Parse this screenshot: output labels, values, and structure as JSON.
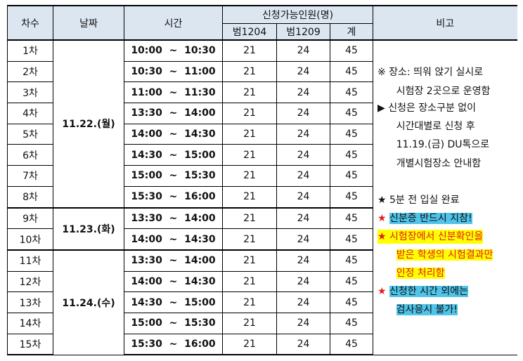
{
  "headers": {
    "round": "차수",
    "date": "날짜",
    "time": "시간",
    "capacity": "신청가능인원(명)",
    "room1": "범1204",
    "room2": "범1209",
    "total": "계",
    "remarks": "비고"
  },
  "rows": [
    {
      "round": "1차",
      "time": "10:00  ~  10:30",
      "r1": "21",
      "r2": "24",
      "t": "45"
    },
    {
      "round": "2차",
      "time": "10:30  ~  11:00",
      "r1": "21",
      "r2": "24",
      "t": "45"
    },
    {
      "round": "3차",
      "time": "11:00  ~  11:30",
      "r1": "21",
      "r2": "24",
      "t": "45"
    },
    {
      "round": "4차",
      "time": "13:30  ~  14:00",
      "r1": "21",
      "r2": "24",
      "t": "45"
    },
    {
      "round": "5차",
      "time": "14:00  ~  14:30",
      "r1": "21",
      "r2": "24",
      "t": "45"
    },
    {
      "round": "6차",
      "time": "14:30  ~  15:00",
      "r1": "21",
      "r2": "24",
      "t": "45"
    },
    {
      "round": "7차",
      "time": "15:00  ~  15:30",
      "r1": "21",
      "r2": "24",
      "t": "45"
    },
    {
      "round": "8차",
      "time": "15:30  ~  16:00",
      "r1": "21",
      "r2": "24",
      "t": "45"
    },
    {
      "round": "9차",
      "time": "13:30  ~  14:00",
      "r1": "21",
      "r2": "24",
      "t": "45"
    },
    {
      "round": "10차",
      "time": "14:00  ~  14:30",
      "r1": "21",
      "r2": "24",
      "t": "45"
    },
    {
      "round": "11차",
      "time": "13:30  ~  14:00",
      "r1": "21",
      "r2": "24",
      "t": "45"
    },
    {
      "round": "12차",
      "time": "14:00  ~  14:30",
      "r1": "21",
      "r2": "24",
      "t": "45"
    },
    {
      "round": "13차",
      "time": "14:30  ~  15:00",
      "r1": "21",
      "r2": "24",
      "t": "45"
    },
    {
      "round": "14차",
      "time": "15:00  ~  15:30",
      "r1": "21",
      "r2": "24",
      "t": "45"
    },
    {
      "round": "15차",
      "time": "15:30  ~  16:00",
      "r1": "21",
      "r2": "24",
      "t": "45"
    }
  ],
  "dates": [
    "11.22.(월)",
    "11.23.(화)",
    "11.24.(수)"
  ],
  "remarks": {
    "l1": "※ 장소: 띄워 앉기 실시로",
    "l2": "시험장 2곳으로 운영함",
    "l3": "▶ 신청은 장소구분 없이",
    "l4": "시간대별로 신청 후",
    "l5": "11.19.(금) DU톡으로",
    "l6": "개별시험장소 안내함",
    "star": "★",
    "s1": "5분 전 입실 완료",
    "s2": "신분증 반드시 지참!",
    "s3": "시험장에서 신분확인을",
    "s3b": "받은 학생의 시험결과만",
    "s3c": "인정 처리함",
    "s4": "신청한 시간 외에는",
    "s4b": "검사응시 불가!"
  },
  "colors": {
    "header_bg": "#dce6f1",
    "highlight_blue": "#4fc3e8",
    "highlight_yellow": "#ffff00",
    "red": "#e31b1b"
  }
}
